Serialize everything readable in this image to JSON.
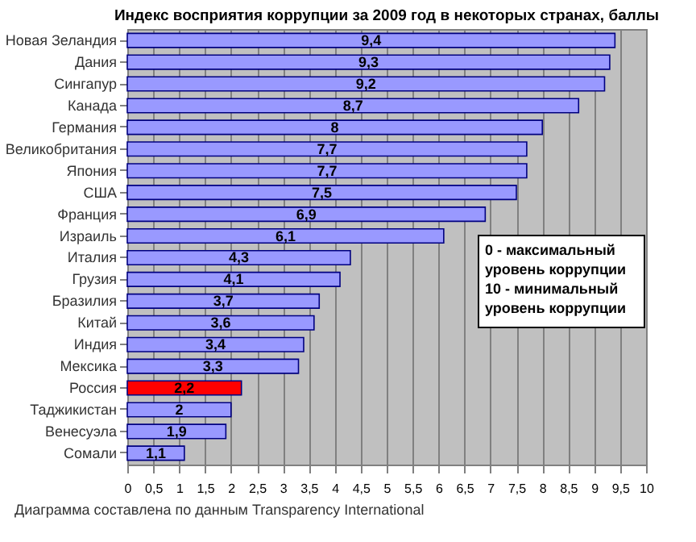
{
  "chart_data": {
    "type": "bar",
    "orientation": "horizontal",
    "title": "Индекс восприятия коррупции за 2009 год в некоторых странах, баллы",
    "categories": [
      "Новая Зеландия",
      "Дания",
      "Сингапур",
      "Канада",
      "Германия",
      "Великобритания",
      "Япония",
      "США",
      "Франция",
      "Израиль",
      "Италия",
      "Грузия",
      "Бразилия",
      "Китай",
      "Индия",
      "Мексика",
      "Россия",
      "Таджикистан",
      "Венесуэла",
      "Сомали"
    ],
    "values": [
      9.4,
      9.3,
      9.2,
      8.7,
      8,
      7.7,
      7.7,
      7.5,
      6.9,
      6.1,
      4.3,
      4.1,
      3.7,
      3.6,
      3.4,
      3.3,
      2.2,
      2,
      1.9,
      1.1
    ],
    "value_labels": [
      "9,4",
      "9,3",
      "9,2",
      "8,7",
      "8",
      "7,7",
      "7,7",
      "7,5",
      "6,9",
      "6,1",
      "4,3",
      "4,1",
      "3,7",
      "3,6",
      "3,4",
      "3,3",
      "2,2",
      "2",
      "1,9",
      "1,1"
    ],
    "colors": [
      "#9999ff",
      "#9999ff",
      "#9999ff",
      "#9999ff",
      "#9999ff",
      "#9999ff",
      "#9999ff",
      "#9999ff",
      "#9999ff",
      "#9999ff",
      "#9999ff",
      "#9999ff",
      "#9999ff",
      "#9999ff",
      "#9999ff",
      "#9999ff",
      "#ff0000",
      "#9999ff",
      "#9999ff",
      "#9999ff"
    ],
    "xlim": [
      0,
      10
    ],
    "xticks": [
      0,
      {
        "value": 0.5,
        "label": "0,5"
      },
      1,
      {
        "value": 1.5,
        "label": "1,5"
      },
      2,
      {
        "value": 2.5,
        "label": "2,5"
      },
      3,
      {
        "value": 3.5,
        "label": "3,5"
      },
      4,
      {
        "value": 4.5,
        "label": "4,5"
      },
      5,
      {
        "value": 5.5,
        "label": "5,5"
      },
      6,
      {
        "value": 6.5,
        "label": "6,5"
      },
      7,
      {
        "value": 7.5,
        "label": "7,5"
      },
      8,
      {
        "value": 8.5,
        "label": "8,5"
      },
      9,
      {
        "value": 9.5,
        "label": "9,5"
      },
      10
    ],
    "grid": "x",
    "annotations": [
      "0 - максимальный уровень коррупции 10 - минимальный уровень коррупции",
      "Диаграмма составлена по данным Transparency International"
    ]
  }
}
